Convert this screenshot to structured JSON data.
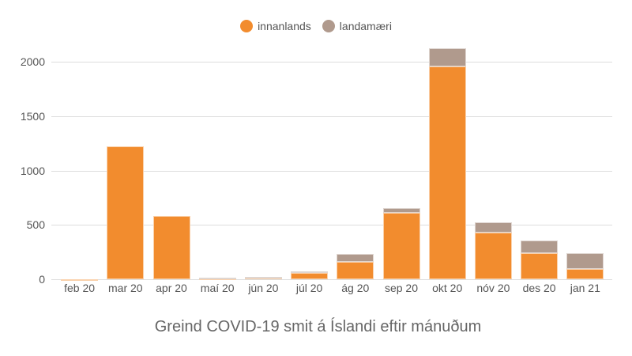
{
  "legend": [
    {
      "label": "innanlands",
      "color": "#f28c2e"
    },
    {
      "label": "landamæri",
      "color": "#b09a8d"
    }
  ],
  "title": "Greind COVID-19 smit á Íslandi eftir mánuðum",
  "chart_data": {
    "type": "bar",
    "stacked": true,
    "title": "Greind COVID-19 smit á Íslandi eftir mánuðum",
    "xlabel": "",
    "ylabel": "",
    "ylim": [
      0,
      2150
    ],
    "yticks": [
      0,
      500,
      1000,
      1500,
      2000
    ],
    "grid": true,
    "legend_position": "top",
    "categories": [
      "feb 20",
      "mar 20",
      "apr 20",
      "maí 20",
      "jún 20",
      "júl 20",
      "ág 20",
      "sep 20",
      "okt 20",
      "nóv 20",
      "des 20",
      "jan 21"
    ],
    "series": [
      {
        "name": "innanlands",
        "color": "#f28c2e",
        "values": [
          3,
          1222,
          582,
          10,
          12,
          55,
          160,
          611,
          1956,
          429,
          240,
          95
        ]
      },
      {
        "name": "landamæri",
        "color": "#b09a8d",
        "values": [
          0,
          0,
          0,
          2,
          8,
          15,
          73,
          44,
          168,
          95,
          116,
          145
        ]
      }
    ]
  }
}
